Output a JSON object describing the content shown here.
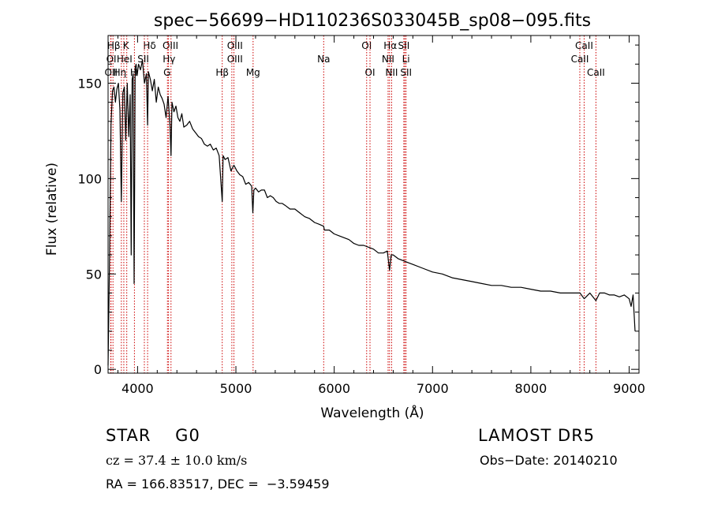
{
  "chart_data": {
    "type": "line",
    "title": "spec−56699−HD110236S033045B_sp08−095.fits",
    "xlabel": "Wavelength (Å)",
    "ylabel": "Flux (relative)",
    "xlim": [
      3700,
      9100
    ],
    "ylim": [
      -2,
      175
    ],
    "xticks": [
      4000,
      5000,
      6000,
      7000,
      8000,
      9000
    ],
    "yticks": [
      0,
      50,
      100,
      150
    ],
    "grid": false,
    "line_color": "#000000",
    "marker_color": "#cc0000",
    "series": [
      {
        "x": [
          3700,
          3715,
          3730,
          3745,
          3760,
          3775,
          3790,
          3805,
          3820,
          3835,
          3850,
          3865,
          3880,
          3895,
          3910,
          3925,
          3935,
          3945,
          3955,
          3965,
          3970,
          3975,
          3985,
          3995,
          4010,
          4030,
          4050,
          4070,
          4090,
          4102,
          4110,
          4130,
          4150,
          4170,
          4190,
          4210,
          4230,
          4250,
          4270,
          4290,
          4310,
          4330,
          4340,
          4350,
          4370,
          4390,
          4410,
          4430,
          4450,
          4470,
          4500,
          4530,
          4560,
          4590,
          4620,
          4650,
          4680,
          4710,
          4740,
          4770,
          4800,
          4830,
          4861,
          4870,
          4890,
          4920,
          4950,
          4980,
          5010,
          5040,
          5070,
          5100,
          5130,
          5160,
          5172,
          5183,
          5200,
          5230,
          5260,
          5290,
          5320,
          5350,
          5380,
          5410,
          5440,
          5470,
          5500,
          5550,
          5600,
          5650,
          5700,
          5750,
          5800,
          5850,
          5893,
          5900,
          5950,
          6000,
          6050,
          6100,
          6150,
          6200,
          6250,
          6300,
          6350,
          6400,
          6450,
          6500,
          6540,
          6563,
          6580,
          6600,
          6650,
          6700,
          6750,
          6800,
          6900,
          7000,
          7100,
          7200,
          7300,
          7400,
          7500,
          7600,
          7700,
          7800,
          7900,
          8000,
          8100,
          8200,
          8300,
          8400,
          8500,
          8542,
          8600,
          8662,
          8700,
          8750,
          8800,
          8850,
          8900,
          8950,
          9000,
          9020,
          9040,
          9060
        ],
        "y": [
          2,
          60,
          128,
          146,
          148,
          140,
          147,
          150,
          136,
          88,
          145,
          148,
          120,
          150,
          122,
          144,
          60,
          152,
          155,
          45,
          100,
          158,
          160,
          154,
          160,
          157,
          162,
          150,
          155,
          128,
          156,
          152,
          146,
          152,
          140,
          148,
          144,
          142,
          139,
          132,
          143,
          128,
          112,
          140,
          135,
          138,
          132,
          130,
          134,
          127,
          128,
          130,
          126,
          124,
          122,
          121,
          118,
          117,
          118,
          115,
          116,
          112,
          88,
          112,
          110,
          111,
          104,
          107,
          104,
          102,
          101,
          97,
          98,
          96,
          82,
          94,
          95,
          93,
          94,
          94,
          90,
          91,
          90,
          88,
          87,
          87,
          86,
          84,
          84,
          82,
          80,
          79,
          77,
          76,
          75,
          73,
          73,
          71,
          70,
          69,
          68,
          66,
          65,
          65,
          64,
          63,
          61,
          61,
          62,
          52,
          60,
          60,
          58,
          57,
          56,
          55,
          53,
          51,
          50,
          48,
          47,
          46,
          45,
          44,
          44,
          43,
          43,
          42,
          41,
          41,
          40,
          40,
          40,
          37,
          40,
          36,
          40,
          40,
          39,
          39,
          38,
          39,
          37,
          33,
          39,
          20
        ]
      }
    ],
    "line_markers": [
      {
        "label": "Hβ",
        "x": 3750,
        "row": 1,
        "text_x": 3758
      },
      {
        "label": "K",
        "x": 3860,
        "row": 1,
        "text_x": 3882
      },
      {
        "label": "Hδ",
        "x": 4102,
        "row": 1,
        "text_x": 4122
      },
      {
        "label": "OIII",
        "x": 4340,
        "row": 1,
        "text_x": 4334
      },
      {
        "label": "OIII",
        "x": 4980,
        "row": 1,
        "text_x": 4990
      },
      {
        "label": "OI",
        "x": 6330,
        "row": 1,
        "text_x": 6330
      },
      {
        "label": "Hα",
        "x": 6563,
        "row": 1,
        "text_x": 6570
      },
      {
        "label": "SII",
        "x": 6718,
        "row": 1,
        "text_x": 6708
      },
      {
        "label": "CaII",
        "x": 8542,
        "row": 1,
        "text_x": 8542
      },
      {
        "label": "OI",
        "x": 3730,
        "row": 2,
        "text_x": 3733
      },
      {
        "label": "HeI",
        "x": 3890,
        "row": 2,
        "text_x": 3867
      },
      {
        "label": "SII",
        "x": 4069,
        "row": 2,
        "text_x": 4058
      },
      {
        "label": "Hγ",
        "x": 4315,
        "row": 2,
        "text_x": 4320
      },
      {
        "label": "OIII",
        "x": 4959,
        "row": 2,
        "text_x": 4990
      },
      {
        "label": "Na",
        "x": 5893,
        "row": 2,
        "text_x": 5893
      },
      {
        "label": "NII",
        "x": 6548,
        "row": 2,
        "text_x": 6548
      },
      {
        "label": "Li",
        "x": 6708,
        "row": 2,
        "text_x": 6730
      },
      {
        "label": "CaII",
        "x": 8498,
        "row": 2,
        "text_x": 8498
      },
      {
        "label": "OII",
        "x": 3727,
        "row": 3,
        "text_x": 3730
      },
      {
        "label": "Hη",
        "x": 3835,
        "row": 3,
        "text_x": 3820
      },
      {
        "label": "H",
        "x": 3968,
        "row": 3,
        "text_x": 3960
      },
      {
        "label": "G",
        "x": 4304,
        "row": 3,
        "text_x": 4300
      },
      {
        "label": "Hβ",
        "x": 4861,
        "row": 3,
        "text_x": 4861
      },
      {
        "label": "Mg",
        "x": 5175,
        "row": 3,
        "text_x": 5175
      },
      {
        "label": "OI",
        "x": 6364,
        "row": 3,
        "text_x": 6364
      },
      {
        "label": "NII",
        "x": 6584,
        "row": 3,
        "text_x": 6584
      },
      {
        "label": "SII",
        "x": 6731,
        "row": 3,
        "text_x": 6731
      },
      {
        "label": "CaII",
        "x": 8662,
        "row": 3,
        "text_x": 8662
      }
    ]
  },
  "info": {
    "class_label": "STAR    G0",
    "survey": "LAMOST DR5",
    "cz": "cz = 37.4 ± 10.0 km/s",
    "obs_date": "Obs−Date: 20140210",
    "coords": "RA = 166.83517, DEC =  −3.59459"
  }
}
